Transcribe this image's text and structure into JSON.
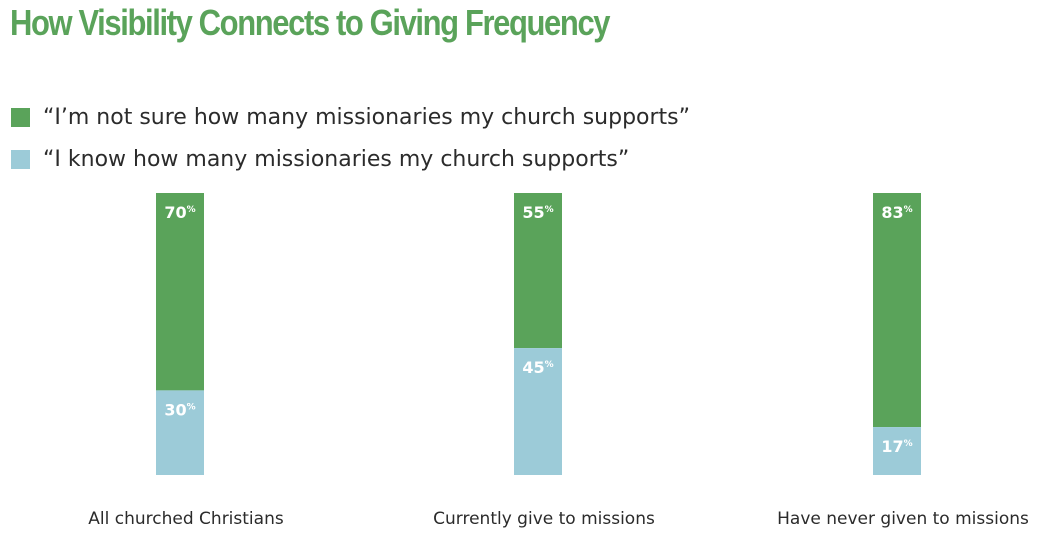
{
  "chart_data": {
    "type": "bar",
    "stacked": true,
    "title": "How Visibility Connects to Giving Frequency",
    "categories": [
      "All churched Christians",
      "Currently give to missions",
      "Have never given to missions"
    ],
    "series": [
      {
        "name": "“I’m not sure how many missionaries my church supports”",
        "color": "#5aa35a",
        "values": [
          70,
          55,
          83
        ]
      },
      {
        "name": "“I know how many missionaries my church supports”",
        "color": "#9ccbd8",
        "values": [
          30,
          45,
          17
        ]
      }
    ],
    "value_suffix": "%",
    "ylim": [
      0,
      100
    ],
    "legend": "top-left",
    "grid": false
  }
}
